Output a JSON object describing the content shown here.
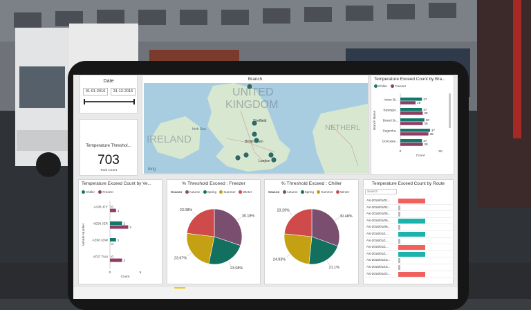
{
  "date_card": {
    "title": "Date",
    "start": "01-01-2016",
    "end": "31-12-2016"
  },
  "count_card": {
    "title": "Temperature Threshol...",
    "value": "703",
    "sub": "Total Count"
  },
  "map": {
    "title": "Branch",
    "labels": [
      "UNITED",
      "KINGDOM",
      "IRELAND",
      "NETHERL",
      "Irish Sea",
      "Sheffield",
      "Birmingham",
      "London",
      "bing"
    ]
  },
  "branch_chart": {
    "title": "Temperature Exceed Count by Bra...",
    "legend": [
      "Chiller",
      "Freezer"
    ],
    "ylabel": "Branch Name",
    "xlabel": "Count",
    "xticks": [
      "0",
      "50"
    ],
    "rows": [
      {
        "label": "Aston Bi...",
        "chiller": 27,
        "freezer": 19
      },
      {
        "label": "Basingst...",
        "chiller": 27,
        "freezer": 28
      },
      {
        "label": "Bristol Br...",
        "chiller": 30,
        "freezer": 28
      },
      {
        "label": "Dagenha...",
        "chiller": 37,
        "freezer": 35
      },
      {
        "label": "Doncaste...",
        "chiller": 27,
        "freezer": 28
      }
    ]
  },
  "vehicle_chart": {
    "title": "Temperature Exceed Count by Ve...",
    "legend": [
      "Chiller",
      "Freezer"
    ],
    "ylabel": "Vehicle Number",
    "xlabel": "Count",
    "xticks": [
      "0",
      "5"
    ],
    "rows": [
      {
        "label": "AA08 JFY",
        "chiller": 0,
        "freezer": 1
      },
      {
        "label": "AE08 JER",
        "chiller": 2,
        "freezer": 3
      },
      {
        "label": "AE08 JDW",
        "chiller": 1,
        "freezer": 0
      },
      {
        "label": "AF57 TNU",
        "chiller": 0,
        "freezer": 2
      }
    ]
  },
  "freezer_pie": {
    "title": "% Threshold Exceed : Freezer",
    "legend_title": "Season",
    "legend": [
      "Autumn",
      "Spring",
      "Summer",
      "Winter"
    ],
    "slices": [
      {
        "name": "Autumn",
        "value": 30.18,
        "label": "30.18%"
      },
      {
        "name": "Spring",
        "value": 23.08,
        "label": "23.08%"
      },
      {
        "name": "Summer",
        "value": 23.67,
        "label": "23.67%"
      },
      {
        "name": "Winter",
        "value": 23.08,
        "label": "23.08%"
      }
    ]
  },
  "chiller_pie": {
    "title": "% Threshold Exceed : Chiller",
    "legend_title": "Season",
    "legend": [
      "Autumn",
      "Spring",
      "Summer",
      "Winter"
    ],
    "slices": [
      {
        "name": "Autumn",
        "value": 30.48,
        "label": "30.48%"
      },
      {
        "name": "Spring",
        "value": 21.1,
        "label": "21.1%"
      },
      {
        "name": "Summer",
        "value": 24.93,
        "label": "24.93%"
      },
      {
        "name": "Winter",
        "value": 23.29,
        "label": "23.29%"
      }
    ]
  },
  "route_table": {
    "title": "Temperature Exceed Count by Route",
    "search_placeholder": "Search",
    "rows": [
      {
        "route": "AS-2016/01/01...",
        "type": "freezer",
        "value": 0.78
      },
      {
        "route": "AS-2016/01/02...",
        "type": "none",
        "value": 0.06
      },
      {
        "route": "AS-2016/01/05...",
        "type": "none",
        "value": 0.06
      },
      {
        "route": "AS-2016/01/05...",
        "type": "chiller",
        "value": 0.78
      },
      {
        "route": "AS-2016/01/06...",
        "type": "none",
        "value": 0.06
      },
      {
        "route": "AS-2016/01/1...",
        "type": "chiller",
        "value": 0.78
      },
      {
        "route": "AS-2016/01/1...",
        "type": "none",
        "value": 0.06
      },
      {
        "route": "AS-2016/01/1...",
        "type": "freezer",
        "value": 0.78
      },
      {
        "route": "AS-2016/01/1...",
        "type": "chiller",
        "value": 0.78
      },
      {
        "route": "AS-2016/01/15...",
        "type": "none",
        "value": 0.06
      },
      {
        "route": "AS-2016/01/15...",
        "type": "none",
        "value": 0.06
      },
      {
        "route": "AS-2016/01/22...",
        "type": "freezer",
        "value": 0.78
      }
    ]
  },
  "colors": {
    "chiller": "#12786c",
    "freezer": "#8e3e63",
    "autumn": "#7a4e6e",
    "spring": "#13705f",
    "summer": "#c4a112",
    "winter": "#cf4a4a",
    "route_red": "#f0605c",
    "route_teal": "#1bb3ab",
    "accent_tab": "#f2c811"
  }
}
